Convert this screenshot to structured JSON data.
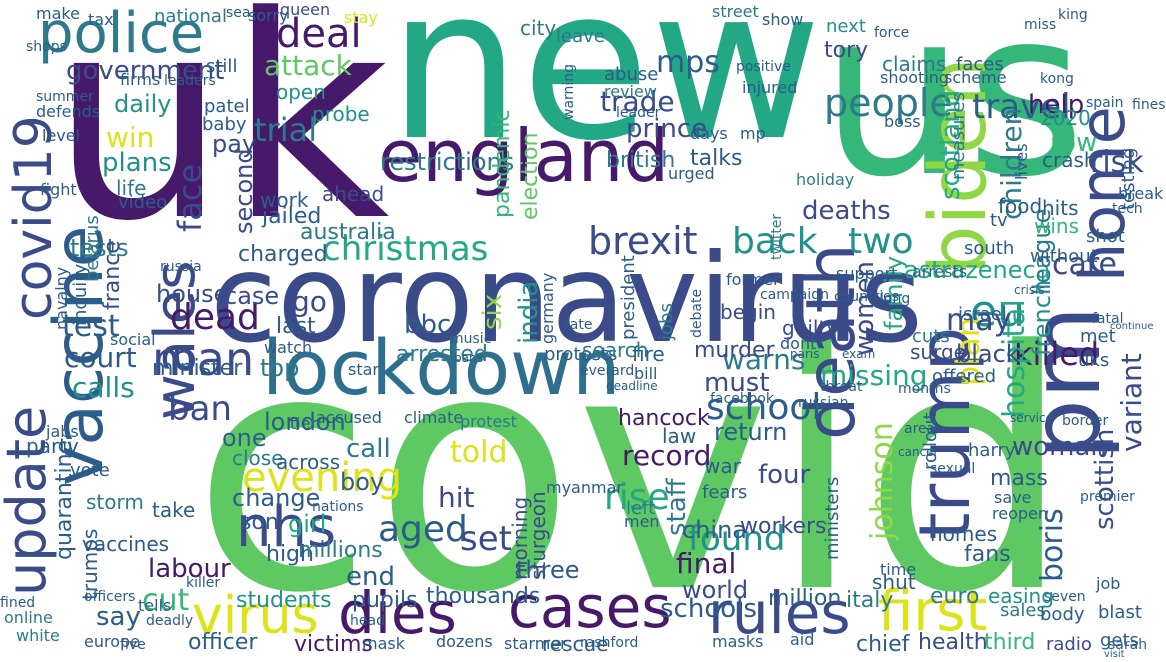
{
  "palette": {
    "dark_purple": "#46196b",
    "indigo": "#3b4b8a",
    "blue": "#2f6f8e",
    "teal": "#21918c",
    "green": "#35b779",
    "lime": "#8fd744",
    "yellow": "#dde318"
  },
  "words": [
    {
      "text": "covid",
      "color": "#5ec962"
    },
    {
      "text": "uk",
      "color": "#46196b"
    },
    {
      "text": "new",
      "color": "#22a884"
    },
    {
      "text": "us",
      "color": "#35b779"
    },
    {
      "text": "coronavirus",
      "color": "#3b4b8a"
    },
    {
      "text": "lockdown",
      "color": "#2f6f8e"
    },
    {
      "text": "england",
      "color": "#46196b"
    },
    {
      "text": "vaccine",
      "color": "#2c5c8a"
    },
    {
      "text": "police",
      "color": "#2c7a8c"
    },
    {
      "text": "pm",
      "color": "#3b4b8a"
    },
    {
      "text": "trump",
      "color": "#3b4b8a"
    },
    {
      "text": "biden",
      "color": "#8fd744"
    },
    {
      "text": "home",
      "color": "#3b4b8a"
    },
    {
      "text": "death",
      "color": "#3b4b8a"
    },
    {
      "text": "cases",
      "color": "#46196b"
    },
    {
      "text": "dies",
      "color": "#46196b"
    },
    {
      "text": "rules",
      "color": "#3b4b8a"
    },
    {
      "text": "virus",
      "color": "#dde318"
    },
    {
      "text": "first",
      "color": "#dde318"
    },
    {
      "text": "nhs",
      "color": "#3b4b8a"
    },
    {
      "text": "man",
      "color": "#3b4b8a"
    },
    {
      "text": "update",
      "color": "#3b4b8a"
    },
    {
      "text": "wales",
      "color": "#3b4b8a"
    },
    {
      "text": "covid19",
      "color": "#3b4b8a"
    },
    {
      "text": "deal",
      "color": "#46196b"
    },
    {
      "text": "people",
      "color": "#2c7a8c"
    },
    {
      "text": "travel",
      "color": "#2c5c8a"
    },
    {
      "text": "brexit",
      "color": "#3b4b8a"
    },
    {
      "text": "back",
      "color": "#21918c"
    },
    {
      "text": "two",
      "color": "#21918c"
    },
    {
      "text": "christmas",
      "color": "#22a884"
    },
    {
      "text": "killed",
      "color": "#46196b"
    },
    {
      "text": "eu",
      "color": "#21918c"
    },
    {
      "text": "school",
      "color": "#2c5c8a"
    },
    {
      "text": "evening",
      "color": "#dde318"
    },
    {
      "text": "dead",
      "color": "#46196b"
    },
    {
      "text": "test",
      "color": "#2c5c8a"
    },
    {
      "text": "face",
      "color": "#3b4b8a"
    },
    {
      "text": "attack",
      "color": "#5ec962"
    },
    {
      "text": "trade",
      "color": "#3b4b8a"
    },
    {
      "text": "mps",
      "color": "#2c5c8a"
    },
    {
      "text": "found",
      "color": "#21918c"
    },
    {
      "text": "aged",
      "color": "#2c5c8a"
    },
    {
      "text": "rise",
      "color": "#22a884"
    },
    {
      "text": "set",
      "color": "#3b4b8a"
    },
    {
      "text": "hospital",
      "color": "#22a884"
    },
    {
      "text": "johnson",
      "color": "#8fd744"
    },
    {
      "text": "plan",
      "color": "#dde318"
    },
    {
      "text": "boris",
      "color": "#2c5c8a"
    },
    {
      "text": "children",
      "color": "#2c7a8c"
    },
    {
      "text": "risk",
      "color": "#3b4b8a"
    },
    {
      "text": "women",
      "color": "#3b4b8a"
    },
    {
      "text": "family",
      "color": "#22a884"
    },
    {
      "text": "may",
      "color": "#3b4b8a"
    },
    {
      "text": "care",
      "color": "#3b4b8a"
    },
    {
      "text": "scotland",
      "color": "#22a884"
    },
    {
      "text": "restrictions",
      "color": "#2c7a8c"
    },
    {
      "text": "pandemic",
      "color": "#35b779"
    },
    {
      "text": "election",
      "color": "#5ec962"
    },
    {
      "text": "prince",
      "color": "#3b4b8a"
    },
    {
      "text": "help",
      "color": "#46196b"
    },
    {
      "text": "tests",
      "color": "#2c7a8c"
    },
    {
      "text": "plans",
      "color": "#21918c"
    },
    {
      "text": "win",
      "color": "#dde318"
    },
    {
      "text": "daily",
      "color": "#21918c"
    },
    {
      "text": "government",
      "color": "#3b4b8a"
    },
    {
      "text": "second",
      "color": "#3b4b8a"
    },
    {
      "text": "trial",
      "color": "#2c7a8c"
    },
    {
      "text": "pay",
      "color": "#3b4b8a"
    },
    {
      "text": "charged",
      "color": "#2c5c8a"
    },
    {
      "text": "house",
      "color": "#3b4b8a"
    },
    {
      "text": "case",
      "color": "#3b4b8a"
    },
    {
      "text": "go",
      "color": "#3b4b8a"
    },
    {
      "text": "last",
      "color": "#2c5c8a"
    },
    {
      "text": "bbc",
      "color": "#2c5c8a"
    },
    {
      "text": "six",
      "color": "#8fd744"
    },
    {
      "text": "india",
      "color": "#21918c"
    },
    {
      "text": "warns",
      "color": "#2c7a8c"
    },
    {
      "text": "murder",
      "color": "#3b4b8a"
    },
    {
      "text": "missing",
      "color": "#22a884"
    },
    {
      "text": "deaths",
      "color": "#3b4b8a"
    },
    {
      "text": "astrazeneca",
      "color": "#22a884"
    },
    {
      "text": "league",
      "color": "#2c7a8c"
    },
    {
      "text": "french",
      "color": "#21918c"
    },
    {
      "text": "black",
      "color": "#3b4b8a"
    },
    {
      "text": "must",
      "color": "#3b4b8a"
    },
    {
      "text": "court",
      "color": "#2c5c8a"
    },
    {
      "text": "calls",
      "color": "#21918c"
    },
    {
      "text": "top",
      "color": "#2c7a8c"
    },
    {
      "text": "ban",
      "color": "#3b4b8a"
    },
    {
      "text": "one",
      "color": "#2c5c8a"
    },
    {
      "text": "london",
      "color": "#2c5c8a"
    },
    {
      "text": "told",
      "color": "#dde318"
    },
    {
      "text": "call",
      "color": "#2c7a8c"
    },
    {
      "text": "boy",
      "color": "#2c5c8a"
    },
    {
      "text": "hit",
      "color": "#3b4b8a"
    },
    {
      "text": "record",
      "color": "#46196b"
    },
    {
      "text": "hancock",
      "color": "#46196b"
    },
    {
      "text": "return",
      "color": "#2c5c8a"
    },
    {
      "text": "woman",
      "color": "#3b4b8a"
    },
    {
      "text": "staff",
      "color": "#2c7a8c"
    },
    {
      "text": "four",
      "color": "#3b4b8a"
    },
    {
      "text": "change",
      "color": "#2c5c8a"
    },
    {
      "text": "girl",
      "color": "#22a884"
    },
    {
      "text": "labour",
      "color": "#46196b"
    },
    {
      "text": "cut",
      "color": "#35b779"
    },
    {
      "text": "end",
      "color": "#2c5c8a"
    },
    {
      "text": "world",
      "color": "#3b4b8a"
    },
    {
      "text": "three",
      "color": "#2c5c8a"
    },
    {
      "text": "final",
      "color": "#46196b"
    },
    {
      "text": "schools",
      "color": "#2c5c8a"
    },
    {
      "text": "china",
      "color": "#2c5c8a"
    },
    {
      "text": "workers",
      "color": "#3b4b8a"
    },
    {
      "text": "thousands",
      "color": "#2c5c8a"
    },
    {
      "text": "students",
      "color": "#21918c"
    },
    {
      "text": "pupils",
      "color": "#2c5c8a"
    },
    {
      "text": "officer",
      "color": "#2c5c8a"
    },
    {
      "text": "victims",
      "color": "#46196b"
    },
    {
      "text": "million",
      "color": "#2c5c8a"
    },
    {
      "text": "italy",
      "color": "#2c7a8c"
    },
    {
      "text": "easing",
      "color": "#21918c"
    },
    {
      "text": "euro",
      "color": "#2c7a8c"
    },
    {
      "text": "health",
      "color": "#3b4b8a"
    },
    {
      "text": "chief",
      "color": "#2c5c8a"
    },
    {
      "text": "third",
      "color": "#35b779"
    },
    {
      "text": "radio",
      "color": "#3b4b8a"
    },
    {
      "text": "sales",
      "color": "#2c7a8c"
    },
    {
      "text": "body",
      "color": "#2c5c8a"
    },
    {
      "text": "blast",
      "color": "#2c5c8a"
    },
    {
      "text": "gets",
      "color": "#2c5c8a"
    },
    {
      "text": "scottish",
      "color": "#3b4b8a"
    },
    {
      "text": "variant",
      "color": "#3b4b8a"
    },
    {
      "text": "shut",
      "color": "#2c5c8a"
    },
    {
      "text": "homes",
      "color": "#2c5c8a"
    },
    {
      "text": "fans",
      "color": "#2c5c8a"
    },
    {
      "text": "mass",
      "color": "#2c5c8a"
    },
    {
      "text": "jailed",
      "color": "#2c5c8a"
    },
    {
      "text": "australia",
      "color": "#2c7a8c"
    },
    {
      "text": "work",
      "color": "#2c5c8a"
    },
    {
      "text": "ahead",
      "color": "#3b4b8a"
    },
    {
      "text": "life",
      "color": "#2c7a8c"
    },
    {
      "text": "video",
      "color": "#2c5c8a"
    },
    {
      "text": "france",
      "color": "#3b4b8a"
    },
    {
      "text": "minister",
      "color": "#2c5c8a"
    },
    {
      "text": "arrested",
      "color": "#2c7a8c"
    },
    {
      "text": "protests",
      "color": "#2c5c8a"
    },
    {
      "text": "fire",
      "color": "#2c5c8a"
    },
    {
      "text": "search",
      "color": "#2c7a8c"
    },
    {
      "text": "surge",
      "color": "#3b4b8a"
    },
    {
      "text": "guilty",
      "color": "#3b4b8a"
    },
    {
      "text": "begin",
      "color": "#3b4b8a"
    },
    {
      "text": "talks",
      "color": "#2c5c8a"
    },
    {
      "text": "british",
      "color": "#2c7a8c"
    },
    {
      "text": "daily",
      "color": "#21918c"
    },
    {
      "text": "queen",
      "color": "#3b4b8a"
    },
    {
      "text": "open",
      "color": "#21918c"
    },
    {
      "text": "probe",
      "color": "#21918c"
    },
    {
      "text": "stay",
      "color": "#dde318"
    },
    {
      "text": "tory",
      "color": "#3b4b8a"
    },
    {
      "text": "claims",
      "color": "#2c7a8c"
    },
    {
      "text": "faces",
      "color": "#2c5c8a"
    },
    {
      "text": "2020",
      "color": "#21918c"
    },
    {
      "text": "row",
      "color": "#35b779"
    },
    {
      "text": "crash",
      "color": "#2c5c8a"
    },
    {
      "text": "next",
      "color": "#21918c"
    },
    {
      "text": "food",
      "color": "#2c5c8a"
    },
    {
      "text": "hits",
      "color": "#2c5c8a"
    },
    {
      "text": "wins",
      "color": "#35b779"
    },
    {
      "text": "tv",
      "color": "#2c5c8a"
    },
    {
      "text": "shot",
      "color": "#2c5c8a"
    },
    {
      "text": "south",
      "color": "#2c5c8a"
    },
    {
      "text": "without",
      "color": "#2c5c8a"
    },
    {
      "text": "israel",
      "color": "#2c5c8a"
    },
    {
      "text": "met",
      "color": "#2c5c8a"
    },
    {
      "text": "uks",
      "color": "#2c5c8a"
    },
    {
      "text": "cuts",
      "color": "#2c7a8c"
    },
    {
      "text": "offered",
      "color": "#2c5c8a"
    },
    {
      "text": "jobs",
      "color": "#2c7a8c"
    },
    {
      "text": "president",
      "color": "#2c5c8a"
    },
    {
      "text": "germany",
      "color": "#2c5c8a"
    },
    {
      "text": "sturgeon",
      "color": "#3b4b8a"
    },
    {
      "text": "morning",
      "color": "#3b4b8a"
    },
    {
      "text": "fears",
      "color": "#2c5c8a"
    },
    {
      "text": "left",
      "color": "#2c7a8c"
    },
    {
      "text": "men",
      "color": "#2c5c8a"
    },
    {
      "text": "myanmar",
      "color": "#2c5c8a"
    },
    {
      "text": "storm",
      "color": "#2c7a8c"
    },
    {
      "text": "accused",
      "color": "#2c5c8a"
    },
    {
      "text": "climate",
      "color": "#2c5c8a"
    },
    {
      "text": "protest",
      "color": "#2c7a8c"
    },
    {
      "text": "tier",
      "color": "#2c5c8a"
    },
    {
      "text": "close",
      "color": "#2c7a8c"
    },
    {
      "text": "across",
      "color": "#2c5c8a"
    },
    {
      "text": "war",
      "color": "#2c5c8a"
    },
    {
      "text": "law",
      "color": "#2c5c8a"
    },
    {
      "text": "harry",
      "color": "#2c5c8a"
    },
    {
      "text": "high",
      "color": "#2c5c8a"
    },
    {
      "text": "millions",
      "color": "#2c7a8c"
    },
    {
      "text": "son",
      "color": "#2c5c8a"
    },
    {
      "text": "take",
      "color": "#2c5c8a"
    },
    {
      "text": "vaccines",
      "color": "#2c5c8a"
    },
    {
      "text": "say",
      "color": "#2c5c8a"
    },
    {
      "text": "party",
      "color": "#2c5c8a"
    },
    {
      "text": "vote",
      "color": "#2c5c8a"
    },
    {
      "text": "online",
      "color": "#2c7a8c"
    },
    {
      "text": "white",
      "color": "#2c7a8c"
    },
    {
      "text": "quarantine",
      "color": "#2c5c8a"
    },
    {
      "text": "trumps",
      "color": "#2c5c8a"
    },
    {
      "text": "inquiry",
      "color": "#2c5c8a"
    },
    {
      "text": "navalny",
      "color": "#2c5c8a"
    },
    {
      "text": "belarus",
      "color": "#2c7a8c"
    },
    {
      "text": "abuse",
      "color": "#2c5c8a"
    },
    {
      "text": "review",
      "color": "#2c7a8c"
    },
    {
      "text": "shooting",
      "color": "#2c5c8a"
    },
    {
      "text": "scheme",
      "color": "#2c5c8a"
    },
    {
      "text": "arrests",
      "color": "#2c5c8a"
    },
    {
      "text": "support",
      "color": "#2c5c8a"
    },
    {
      "text": "city",
      "color": "#2c7a8c"
    },
    {
      "text": "leave",
      "color": "#2c7a8c"
    },
    {
      "text": "show",
      "color": "#2c5c8a"
    },
    {
      "text": "street",
      "color": "#2c7a8c"
    },
    {
      "text": "national",
      "color": "#2c7a8c"
    },
    {
      "text": "sorry",
      "color": "#2c5c8a"
    },
    {
      "text": "sea",
      "color": "#2c5c8a"
    },
    {
      "text": "make",
      "color": "#2c5c8a"
    },
    {
      "text": "tax",
      "color": "#2c5c8a"
    },
    {
      "text": "still",
      "color": "#2c5c8a"
    },
    {
      "text": "baby",
      "color": "#2c5c8a"
    },
    {
      "text": "patel",
      "color": "#2c5c8a"
    },
    {
      "text": "firms",
      "color": "#2c5c8a"
    },
    {
      "text": "leaders",
      "color": "#2c5c8a"
    },
    {
      "text": "defends",
      "color": "#2c5c8a"
    },
    {
      "text": "summer",
      "color": "#2c5c8a"
    },
    {
      "text": "level",
      "color": "#2c5c8a"
    },
    {
      "text": "fight",
      "color": "#2c5c8a"
    },
    {
      "text": "days",
      "color": "#2c5c8a"
    },
    {
      "text": "mp",
      "color": "#2c5c8a"
    },
    {
      "text": "urged",
      "color": "#2c5c8a"
    },
    {
      "text": "leader",
      "color": "#2c5c8a"
    },
    {
      "text": "injured",
      "color": "#2c5c8a"
    },
    {
      "text": "positive",
      "color": "#2c5c8a"
    },
    {
      "text": "bill",
      "color": "#2c5c8a"
    },
    {
      "text": "rate",
      "color": "#2c5c8a"
    },
    {
      "text": "dont",
      "color": "#2c5c8a"
    },
    {
      "text": "watch",
      "color": "#2c5c8a"
    },
    {
      "text": "star",
      "color": "#2c5c8a"
    },
    {
      "text": "facebook",
      "color": "#2c5c8a"
    },
    {
      "text": "holiday",
      "color": "#2c7a8c"
    },
    {
      "text": "shops",
      "color": "#2c5c8a"
    },
    {
      "text": "twitter",
      "color": "#2c7a8c"
    },
    {
      "text": "boss",
      "color": "#2c5c8a"
    },
    {
      "text": "measures",
      "color": "#2c7a8c"
    },
    {
      "text": "lives",
      "color": "#2c5c8a"
    },
    {
      "text": "testing",
      "color": "#2c5c8a"
    },
    {
      "text": "force",
      "color": "#2c5c8a"
    },
    {
      "text": "king",
      "color": "#2c5c8a"
    },
    {
      "text": "fines",
      "color": "#2c5c8a"
    },
    {
      "text": "spain",
      "color": "#2c5c8a"
    },
    {
      "text": "break",
      "color": "#2c5c8a"
    },
    {
      "text": "tech",
      "color": "#2c5c8a"
    },
    {
      "text": "music",
      "color": "#2c5c8a"
    },
    {
      "text": "warning",
      "color": "#2c5c8a"
    },
    {
      "text": "ministers",
      "color": "#2c5c8a"
    },
    {
      "text": "sexual",
      "color": "#2c5c8a"
    },
    {
      "text": "save",
      "color": "#2c5c8a"
    },
    {
      "text": "reopen",
      "color": "#2c5c8a"
    },
    {
      "text": "rollout",
      "color": "#2c5c8a"
    },
    {
      "text": "seven",
      "color": "#2c5c8a"
    },
    {
      "text": "time",
      "color": "#2c5c8a"
    },
    {
      "text": "job",
      "color": "#2c5c8a"
    },
    {
      "text": "nations",
      "color": "#2c5c8a"
    },
    {
      "text": "jabs",
      "color": "#2c5c8a"
    },
    {
      "text": "social",
      "color": "#2c5c8a"
    },
    {
      "text": "russia",
      "color": "#2c5c8a"
    },
    {
      "text": "tests",
      "color": "#2c5c8a"
    },
    {
      "text": "say",
      "color": "#2c5c8a"
    },
    {
      "text": "miss",
      "color": "#2c5c8a"
    },
    {
      "text": "kong",
      "color": "#2c5c8a"
    },
    {
      "text": "premier",
      "color": "#2c5c8a"
    },
    {
      "text": "hundreds",
      "color": "#2c5c8a"
    },
    {
      "text": "mask",
      "color": "#2c5c8a"
    },
    {
      "text": "rescue",
      "color": "#2c5c8a"
    },
    {
      "text": "masks",
      "color": "#2c5c8a"
    },
    {
      "text": "aid",
      "color": "#2c5c8a"
    },
    {
      "text": "starmer",
      "color": "#2c5c8a"
    },
    {
      "text": "dozens",
      "color": "#2c5c8a"
    },
    {
      "text": "head",
      "color": "#2c5c8a"
    },
    {
      "text": "rashford",
      "color": "#2c5c8a"
    },
    {
      "text": "europe",
      "color": "#2c5c8a"
    },
    {
      "text": "deadly",
      "color": "#2c5c8a"
    },
    {
      "text": "five",
      "color": "#2c5c8a"
    },
    {
      "text": "killer",
      "color": "#2c5c8a"
    },
    {
      "text": "officers",
      "color": "#2c5c8a"
    },
    {
      "text": "fined",
      "color": "#2c5c8a"
    },
    {
      "text": "tells",
      "color": "#2c5c8a"
    },
    {
      "text": "countries",
      "color": "#2c5c8a"
    },
    {
      "text": "long",
      "color": "#2c5c8a"
    },
    {
      "text": "cancer",
      "color": "#2c5c8a"
    },
    {
      "text": "area",
      "color": "#2c5c8a"
    },
    {
      "text": "russian",
      "color": "#2c5c8a"
    },
    {
      "text": "threat",
      "color": "#2c5c8a"
    },
    {
      "text": "months",
      "color": "#2c5c8a"
    },
    {
      "text": "service",
      "color": "#2c5c8a"
    },
    {
      "text": "border",
      "color": "#2c5c8a"
    },
    {
      "text": "curfew",
      "color": "#2c5c8a"
    },
    {
      "text": "sarah",
      "color": "#2c5c8a"
    },
    {
      "text": "visit",
      "color": "#2c5c8a"
    },
    {
      "text": "bans",
      "color": "#2c5c8a"
    },
    {
      "text": "deadline",
      "color": "#2c5c8a"
    },
    {
      "text": "football",
      "color": "#2c5c8a"
    },
    {
      "text": "paris",
      "color": "#2c5c8a"
    },
    {
      "text": "exam",
      "color": "#2c5c8a"
    },
    {
      "text": "everard",
      "color": "#2c5c8a"
    },
    {
      "text": "debate",
      "color": "#2c5c8a"
    },
    {
      "text": "former",
      "color": "#2c5c8a"
    },
    {
      "text": "campaign",
      "color": "#2c5c8a"
    },
    {
      "text": "crisis",
      "color": "#2c5c8a"
    },
    {
      "text": "fatal",
      "color": "#2c5c8a"
    },
    {
      "text": "continue",
      "color": "#2c5c8a"
    },
    {
      "text": "father",
      "color": "#2c5c8a"
    },
    {
      "text": "revealed",
      "color": "#2c5c8a"
    }
  ]
}
